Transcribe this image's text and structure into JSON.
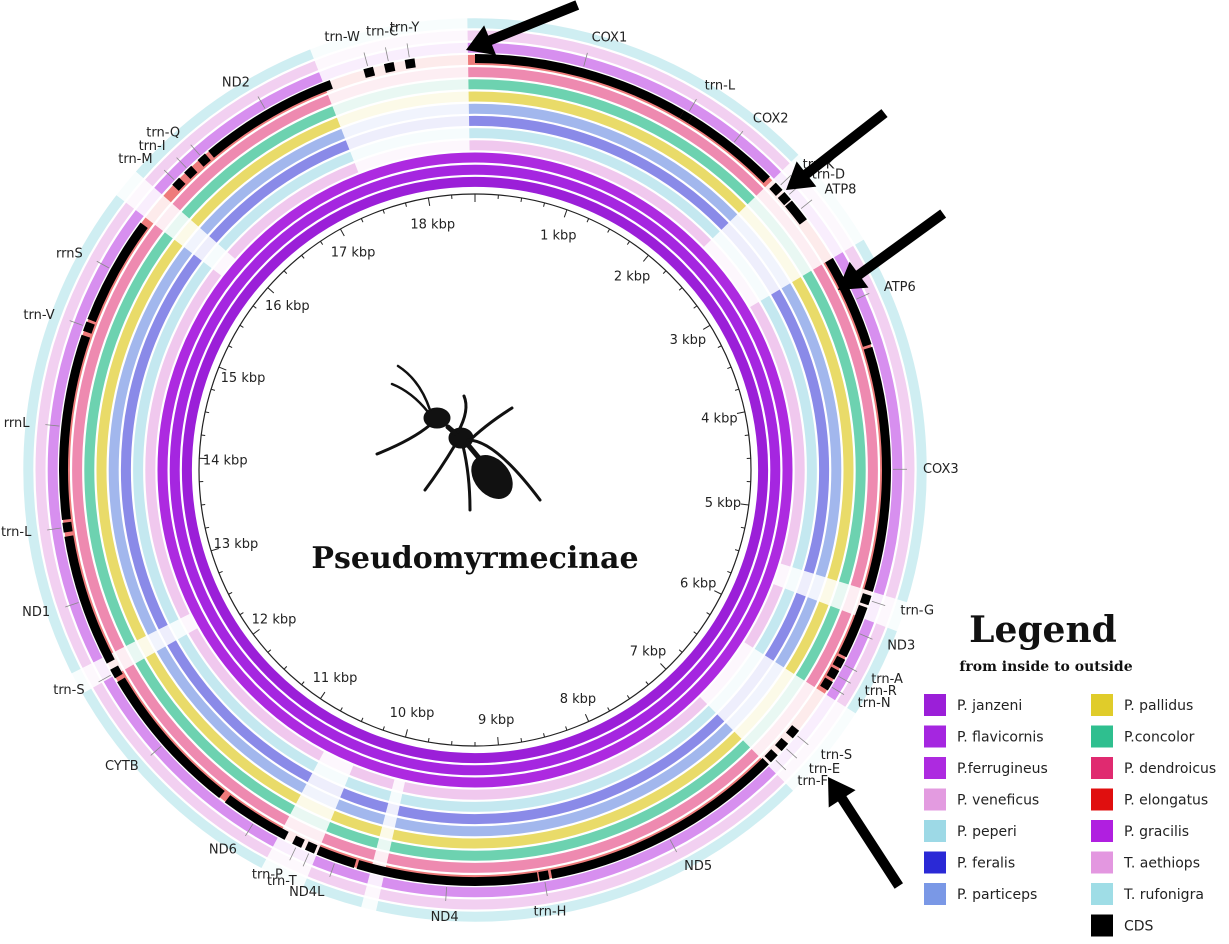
{
  "title": "Pseudomyrmecinae",
  "genome_length_kbp": 18.5,
  "kbp_ticks": [
    "1 kbp",
    "2 kbp",
    "3 kbp",
    "4 kbp",
    "5 kbp",
    "6 kbp",
    "7 kbp",
    "8 kbp",
    "9 kbp",
    "10 kbp",
    "11 kbp",
    "12 kbp",
    "13 kbp",
    "14 kbp",
    "15 kbp",
    "16 kbp",
    "17 kbp",
    "18 kbp"
  ],
  "genes": [
    {
      "name": "COX1",
      "start_kbp": 0.0,
      "end_kbp": 1.55
    },
    {
      "name": "trn-L",
      "start_kbp": 1.55,
      "end_kbp": 1.62
    },
    {
      "name": "COX2",
      "start_kbp": 1.62,
      "end_kbp": 2.32
    },
    {
      "name": "trn-K",
      "start_kbp": 2.38,
      "end_kbp": 2.45
    },
    {
      "name": "trn-D",
      "start_kbp": 2.47,
      "end_kbp": 2.54
    },
    {
      "name": "ATP8",
      "start_kbp": 2.55,
      "end_kbp": 2.72
    },
    {
      "name": "ATP6",
      "start_kbp": 3.05,
      "end_kbp": 3.72
    },
    {
      "name": "COX3",
      "start_kbp": 3.74,
      "end_kbp": 5.5
    },
    {
      "name": "trn-G",
      "start_kbp": 5.53,
      "end_kbp": 5.6
    },
    {
      "name": "ND3",
      "start_kbp": 5.62,
      "end_kbp": 6.0
    },
    {
      "name": "trn-A",
      "start_kbp": 6.02,
      "end_kbp": 6.09
    },
    {
      "name": "trn-R",
      "start_kbp": 6.11,
      "end_kbp": 6.18
    },
    {
      "name": "trn-N",
      "start_kbp": 6.2,
      "end_kbp": 6.27
    },
    {
      "name": "trn-S",
      "start_kbp": 6.62,
      "end_kbp": 6.69
    },
    {
      "name": "trn-E",
      "start_kbp": 6.74,
      "end_kbp": 6.81
    },
    {
      "name": "trn-F",
      "start_kbp": 6.85,
      "end_kbp": 6.92
    },
    {
      "name": "ND5",
      "start_kbp": 6.94,
      "end_kbp": 8.7
    },
    {
      "name": "trn-H",
      "start_kbp": 8.72,
      "end_kbp": 8.79
    },
    {
      "name": "ND4",
      "start_kbp": 8.8,
      "end_kbp": 10.1
    },
    {
      "name": "ND4L",
      "start_kbp": 10.12,
      "end_kbp": 10.4
    },
    {
      "name": "trn-T",
      "start_kbp": 10.42,
      "end_kbp": 10.49
    },
    {
      "name": "trn-P",
      "start_kbp": 10.52,
      "end_kbp": 10.59
    },
    {
      "name": "ND6",
      "start_kbp": 10.65,
      "end_kbp": 11.15
    },
    {
      "name": "CYTB",
      "start_kbp": 11.2,
      "end_kbp": 12.3
    },
    {
      "name": "trn-S",
      "start_kbp": 12.33,
      "end_kbp": 12.4
    },
    {
      "name": "ND1",
      "start_kbp": 12.45,
      "end_kbp": 13.4
    },
    {
      "name": "trn-L",
      "start_kbp": 13.43,
      "end_kbp": 13.5
    },
    {
      "name": "rrnL",
      "start_kbp": 13.52,
      "end_kbp": 14.85
    },
    {
      "name": "trn-V",
      "start_kbp": 14.88,
      "end_kbp": 14.95
    },
    {
      "name": "rrnS",
      "start_kbp": 14.97,
      "end_kbp": 15.75
    },
    {
      "name": "trn-M",
      "start_kbp": 16.1,
      "end_kbp": 16.17
    },
    {
      "name": "trn-I",
      "start_kbp": 16.22,
      "end_kbp": 16.29
    },
    {
      "name": "trn-Q",
      "start_kbp": 16.35,
      "end_kbp": 16.42
    },
    {
      "name": "ND2",
      "start_kbp": 16.45,
      "end_kbp": 17.45
    },
    {
      "name": "trn-W",
      "start_kbp": 17.7,
      "end_kbp": 17.77
    },
    {
      "name": "trn-C",
      "start_kbp": 17.85,
      "end_kbp": 17.92
    },
    {
      "name": "trn-Y",
      "start_kbp": 18.0,
      "end_kbp": 18.07
    }
  ],
  "legend": {
    "title": "Legend",
    "subtitle": "from inside to outside",
    "items": [
      {
        "label": "P. janzeni",
        "color": "#9b1fd8"
      },
      {
        "label": "P. flavicornis",
        "color": "#a526e0"
      },
      {
        "label": "P.ferrugineus",
        "color": "#ad2ae0"
      },
      {
        "label": "P. veneficus",
        "color": "#e39be0"
      },
      {
        "label": "P. peperi",
        "color": "#9dd9e6"
      },
      {
        "label": "P. feralis",
        "color": "#2a29d6"
      },
      {
        "label": "P. particeps",
        "color": "#7a98e6"
      },
      {
        "label": "P. pallidus",
        "color": "#e0cc2a"
      },
      {
        "label": "P.concolor",
        "color": "#2fbf8f"
      },
      {
        "label": "P. dendroicus",
        "color": "#e02a70"
      },
      {
        "label": "P. elongatus",
        "color": "#e00f0f"
      },
      {
        "label": "P. gracilis",
        "color": "#b01fe0"
      },
      {
        "label": "T. aethiops",
        "color": "#e397e0"
      },
      {
        "label": "T. rufonigra",
        "color": "#9fdde6"
      },
      {
        "label": "CDS",
        "color": "#000000"
      }
    ]
  },
  "rings": [
    {
      "color": "#9b1fd8",
      "opacity": 1.0
    },
    {
      "color": "#a526e0",
      "opacity": 1.0
    },
    {
      "color": "#ad2ae0",
      "opacity": 1.0
    },
    {
      "color": "#e39be0",
      "opacity": 0.55
    },
    {
      "color": "#9dd9e6",
      "opacity": 0.6
    },
    {
      "color": "#2a29d6",
      "opacity": 0.55
    },
    {
      "color": "#7a98e6",
      "opacity": 0.7
    },
    {
      "color": "#e0cc2a",
      "opacity": 0.7
    },
    {
      "color": "#2fbf8f",
      "opacity": 0.7
    },
    {
      "color": "#e02a70",
      "opacity": 0.55
    },
    {
      "color": "#e00f0f",
      "opacity": 0.55
    },
    {
      "color": "#b01fe0",
      "opacity": 0.5
    },
    {
      "color": "#e397e0",
      "opacity": 0.45
    },
    {
      "color": "#9fdde6",
      "opacity": 0.5
    }
  ],
  "gaps_kbp": [
    [
      2.35,
      3.05
    ],
    [
      5.5,
      5.7
    ],
    [
      6.3,
      6.95
    ],
    [
      9.9,
      10.0
    ],
    [
      10.4,
      10.7
    ],
    [
      12.35,
      12.5
    ],
    [
      15.8,
      16.0
    ],
    [
      17.4,
      18.45
    ]
  ]
}
